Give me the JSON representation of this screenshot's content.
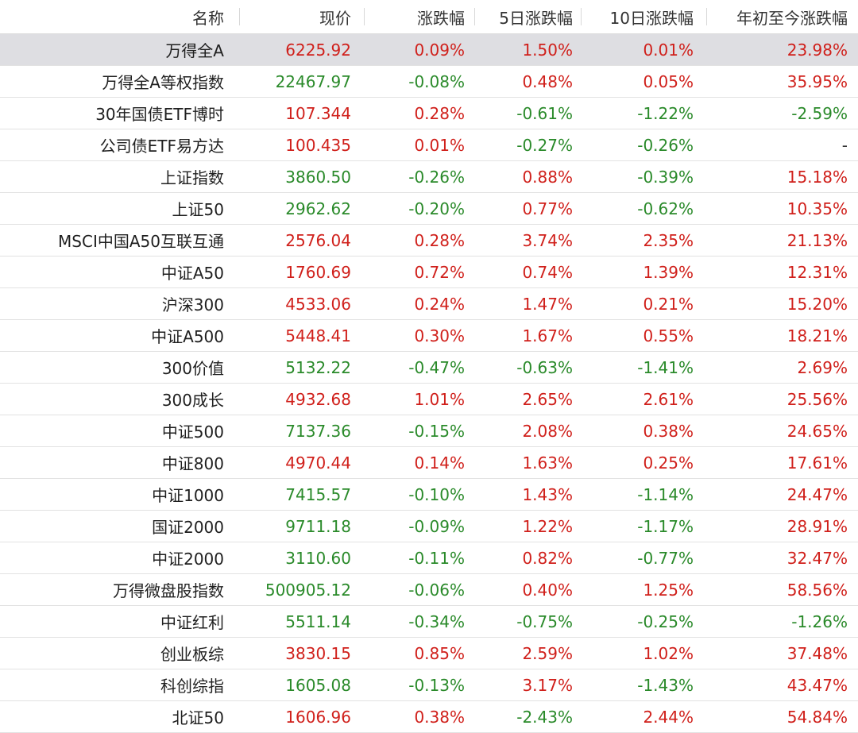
{
  "header": {
    "name": "名称",
    "price": "现价",
    "change": "涨跌幅",
    "change_5d": "5日涨跌幅",
    "change_10d": "10日涨跌幅",
    "change_ytd": "年初至今涨跌幅"
  },
  "colors": {
    "up": "#d0201b",
    "down": "#2a8a2a",
    "highlight_row": "#dedee2"
  },
  "rows": [
    {
      "name": "万得全A",
      "price": "6225.92",
      "change": "0.09%",
      "change_5d": "1.50%",
      "change_10d": "0.01%",
      "change_ytd": "23.98%"
    },
    {
      "name": "万得全A等权指数",
      "price": "22467.97",
      "change": "-0.08%",
      "change_5d": "0.48%",
      "change_10d": "0.05%",
      "change_ytd": "35.95%"
    },
    {
      "name": "30年国债ETF博时",
      "price": "107.344",
      "change": "0.28%",
      "change_5d": "-0.61%",
      "change_10d": "-1.22%",
      "change_ytd": "-2.59%"
    },
    {
      "name": "公司债ETF易方达",
      "price": "100.435",
      "change": "0.01%",
      "change_5d": "-0.27%",
      "change_10d": "-0.26%",
      "change_ytd": "-"
    },
    {
      "name": "上证指数",
      "price": "3860.50",
      "change": "-0.26%",
      "change_5d": "0.88%",
      "change_10d": "-0.39%",
      "change_ytd": "15.18%"
    },
    {
      "name": "上证50",
      "price": "2962.62",
      "change": "-0.20%",
      "change_5d": "0.77%",
      "change_10d": "-0.62%",
      "change_ytd": "10.35%"
    },
    {
      "name": "MSCI中国A50互联互通",
      "price": "2576.04",
      "change": "0.28%",
      "change_5d": "3.74%",
      "change_10d": "2.35%",
      "change_ytd": "21.13%"
    },
    {
      "name": "中证A50",
      "price": "1760.69",
      "change": "0.72%",
      "change_5d": "0.74%",
      "change_10d": "1.39%",
      "change_ytd": "12.31%"
    },
    {
      "name": "沪深300",
      "price": "4533.06",
      "change": "0.24%",
      "change_5d": "1.47%",
      "change_10d": "0.21%",
      "change_ytd": "15.20%"
    },
    {
      "name": "中证A500",
      "price": "5448.41",
      "change": "0.30%",
      "change_5d": "1.67%",
      "change_10d": "0.55%",
      "change_ytd": "18.21%"
    },
    {
      "name": "300价值",
      "price": "5132.22",
      "change": "-0.47%",
      "change_5d": "-0.63%",
      "change_10d": "-1.41%",
      "change_ytd": "2.69%"
    },
    {
      "name": "300成长",
      "price": "4932.68",
      "change": "1.01%",
      "change_5d": "2.65%",
      "change_10d": "2.61%",
      "change_ytd": "25.56%"
    },
    {
      "name": "中证500",
      "price": "7137.36",
      "change": "-0.15%",
      "change_5d": "2.08%",
      "change_10d": "0.38%",
      "change_ytd": "24.65%"
    },
    {
      "name": "中证800",
      "price": "4970.44",
      "change": "0.14%",
      "change_5d": "1.63%",
      "change_10d": "0.25%",
      "change_ytd": "17.61%"
    },
    {
      "name": "中证1000",
      "price": "7415.57",
      "change": "-0.10%",
      "change_5d": "1.43%",
      "change_10d": "-1.14%",
      "change_ytd": "24.47%"
    },
    {
      "name": "国证2000",
      "price": "9711.18",
      "change": "-0.09%",
      "change_5d": "1.22%",
      "change_10d": "-1.17%",
      "change_ytd": "28.91%"
    },
    {
      "name": "中证2000",
      "price": "3110.60",
      "change": "-0.11%",
      "change_5d": "0.82%",
      "change_10d": "-0.77%",
      "change_ytd": "32.47%"
    },
    {
      "name": "万得微盘股指数",
      "price": "500905.12",
      "change": "-0.06%",
      "change_5d": "0.40%",
      "change_10d": "1.25%",
      "change_ytd": "58.56%"
    },
    {
      "name": "中证红利",
      "price": "5511.14",
      "change": "-0.34%",
      "change_5d": "-0.75%",
      "change_10d": "-0.25%",
      "change_ytd": "-1.26%"
    },
    {
      "name": "创业板综",
      "price": "3830.15",
      "change": "0.85%",
      "change_5d": "2.59%",
      "change_10d": "1.02%",
      "change_ytd": "37.48%"
    },
    {
      "name": "科创综指",
      "price": "1605.08",
      "change": "-0.13%",
      "change_5d": "3.17%",
      "change_10d": "-1.43%",
      "change_ytd": "43.47%"
    },
    {
      "name": "北证50",
      "price": "1606.96",
      "change": "0.38%",
      "change_5d": "-2.43%",
      "change_10d": "2.44%",
      "change_ytd": "54.84%"
    }
  ]
}
